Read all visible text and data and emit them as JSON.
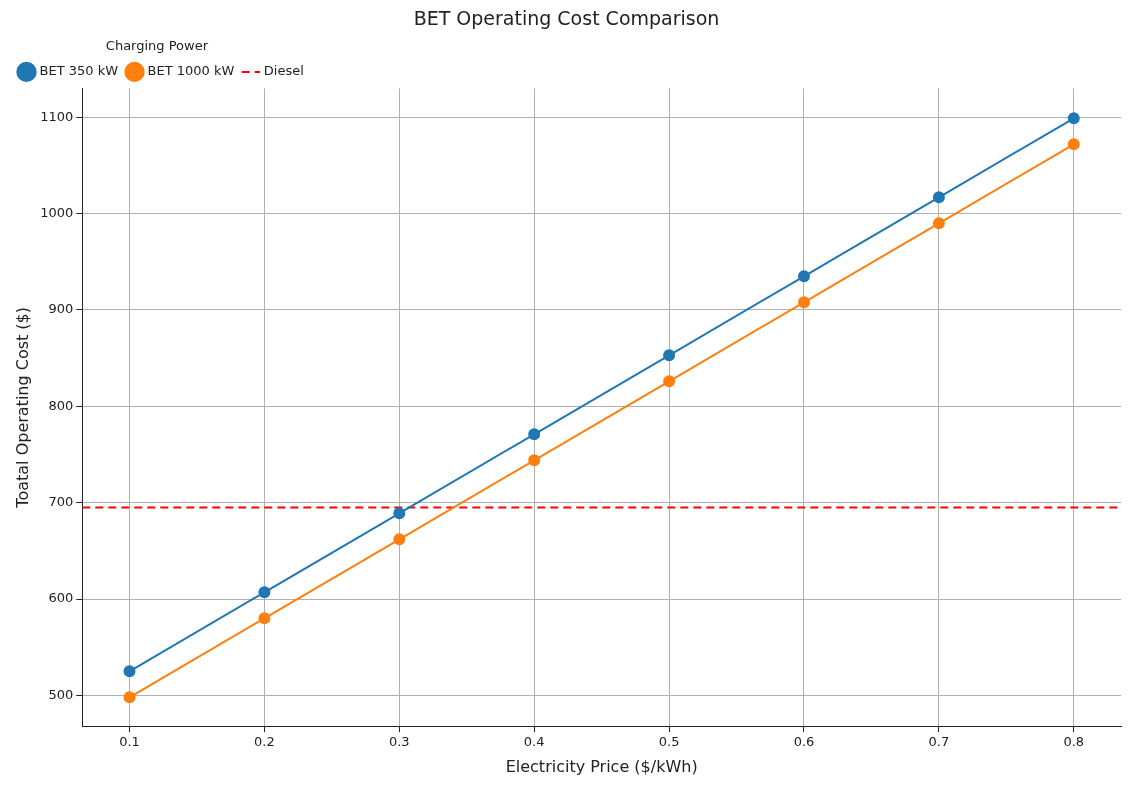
{
  "chart_data": {
    "type": "line",
    "title": "BET Operating Cost Comparison",
    "xlabel": "Electricity Price ($/kWh)",
    "ylabel": "Toatal Operating Cost ($)",
    "legend_title": "Charging Power",
    "x": [
      0.1,
      0.2,
      0.3,
      0.4,
      0.5,
      0.6,
      0.7,
      0.8
    ],
    "series": [
      {
        "name": "BET 350 kW",
        "color": "#1f77b4",
        "values": [
          525,
          607,
          689,
          771,
          853,
          935,
          1017,
          1099
        ]
      },
      {
        "name": "BET 1000 kW",
        "color": "#ff7f0e",
        "values": [
          498,
          580,
          662,
          744,
          826,
          908,
          990,
          1072
        ]
      }
    ],
    "ref_lines": [
      {
        "axis": "y",
        "value": 695,
        "label": "Diesel",
        "color": "#ff0000",
        "line_style": "dashed"
      }
    ],
    "xlim": [
      0.065,
      0.835
    ],
    "ylim": [
      468,
      1130
    ],
    "xticks": [
      0.1,
      0.2,
      0.3,
      0.4,
      0.5,
      0.6,
      0.7,
      0.8
    ],
    "yticks": [
      500,
      600,
      700,
      800,
      900,
      1000,
      1100
    ],
    "grid": true,
    "legend": "top left",
    "marker": "circle",
    "line_style": "solid"
  }
}
